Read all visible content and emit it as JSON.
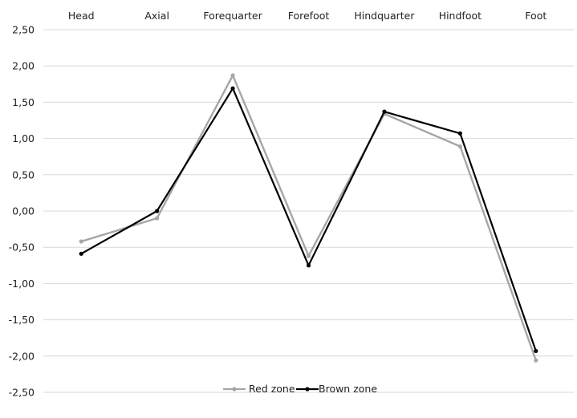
{
  "chart_data": {
    "type": "line",
    "categories": [
      "Head",
      "Axial",
      "Forequarter",
      "Forefoot",
      "Hindquarter",
      "Hindfoot",
      "Foot"
    ],
    "category_axis_position": "top",
    "ylim": [
      -2.5,
      2.5
    ],
    "y_ticks": [
      2.5,
      2.0,
      1.5,
      1.0,
      0.5,
      0.0,
      -0.5,
      -1.0,
      -1.5,
      -2.0,
      -2.5
    ],
    "y_tick_labels": [
      "2,50",
      "2,00",
      "1,50",
      "1,00",
      "0,50",
      "0,00",
      "-0,50",
      "-1,00",
      "-1,50",
      "-2,00",
      "-2,50"
    ],
    "grid": true,
    "legend_position": "bottom",
    "series": [
      {
        "name": "Red zone",
        "color": "#a6a6a6",
        "values": [
          -0.42,
          -0.1,
          1.87,
          -0.62,
          1.34,
          0.89,
          -2.06
        ]
      },
      {
        "name": "Brown zone",
        "color": "#000000",
        "values": [
          -0.59,
          0.0,
          1.69,
          -0.75,
          1.37,
          1.07,
          -1.93
        ]
      }
    ]
  }
}
